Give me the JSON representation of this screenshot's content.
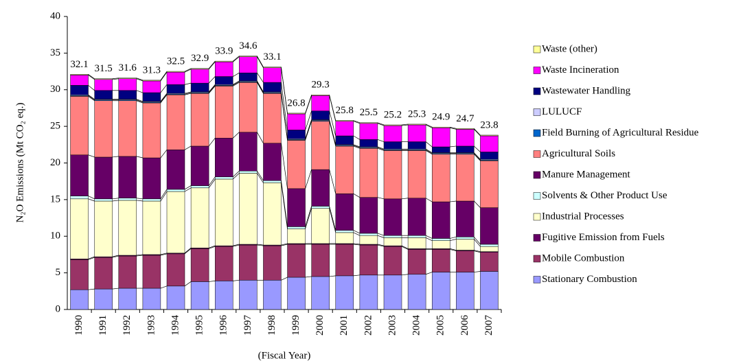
{
  "chart_data": {
    "type": "stacked_bar",
    "y_label": "N₂O Emissions (Mt CO₂ eq.)",
    "x_label": "(Fiscal Year)",
    "categories": [
      "1990",
      "1991",
      "1992",
      "1993",
      "1994",
      "1995",
      "1996",
      "1997",
      "1998",
      "1999",
      "2000",
      "2001",
      "2002",
      "2003",
      "2004",
      "2005",
      "2006",
      "2007"
    ],
    "totals": [
      32.1,
      31.5,
      31.6,
      31.3,
      32.5,
      32.9,
      33.9,
      34.6,
      33.1,
      26.8,
      29.3,
      25.8,
      25.5,
      25.2,
      25.3,
      24.9,
      24.7,
      23.8
    ],
    "ylim": [
      0,
      40
    ],
    "yticks": [
      0,
      5,
      10,
      15,
      20,
      25,
      30,
      35,
      40
    ],
    "series": [
      {
        "name": "Stationary Combustion",
        "color": "#9999ff",
        "values": [
          2.7,
          2.8,
          2.9,
          2.9,
          3.2,
          3.8,
          3.9,
          4.0,
          4.0,
          4.4,
          4.5,
          4.6,
          4.7,
          4.7,
          4.8,
          5.1,
          5.1,
          5.2
        ]
      },
      {
        "name": "Mobile Combustion",
        "color": "#993366",
        "values": [
          4.1,
          4.3,
          4.4,
          4.5,
          4.4,
          4.5,
          4.7,
          4.8,
          4.7,
          4.5,
          4.4,
          4.3,
          4.1,
          3.9,
          3.4,
          3.1,
          2.9,
          2.6
        ]
      },
      {
        "name": "Fugitive Emission from Fuels",
        "color": "#660066",
        "values": [
          0.1,
          0.1,
          0.1,
          0.1,
          0.1,
          0.1,
          0.1,
          0.1,
          0.1,
          0.1,
          0.1,
          0.1,
          0.1,
          0.1,
          0.1,
          0.1,
          0.1,
          0.1
        ]
      },
      {
        "name": "Industrial Processes",
        "color": "#ffffcc",
        "values": [
          8.2,
          7.6,
          7.5,
          7.3,
          8.4,
          8.2,
          9.1,
          9.7,
          8.5,
          2.0,
          4.8,
          1.5,
          1.2,
          1.1,
          1.5,
          1.1,
          1.5,
          0.7
        ]
      },
      {
        "name": "Solvents & Other Product Use",
        "color": "#ccffff",
        "values": [
          0.4,
          0.3,
          0.3,
          0.3,
          0.3,
          0.3,
          0.3,
          0.3,
          0.3,
          0.3,
          0.3,
          0.3,
          0.3,
          0.3,
          0.3,
          0.3,
          0.3,
          0.3
        ]
      },
      {
        "name": "Manure Management",
        "color": "#660066",
        "values": [
          5.6,
          5.7,
          5.7,
          5.6,
          5.4,
          5.4,
          5.3,
          5.3,
          5.1,
          5.2,
          5.0,
          5.0,
          4.9,
          5.0,
          5.1,
          5.0,
          4.9,
          5.0
        ]
      },
      {
        "name": "Agricultural Soils",
        "color": "#ff8080",
        "values": [
          8.0,
          7.7,
          7.6,
          7.5,
          7.5,
          7.2,
          7.1,
          6.8,
          6.8,
          6.6,
          6.6,
          6.5,
          6.7,
          6.6,
          6.5,
          6.5,
          6.4,
          6.4
        ]
      },
      {
        "name": "Field Burning of Agricultural Residue",
        "color": "#0066cc",
        "values": [
          0.1,
          0.1,
          0.1,
          0.1,
          0.1,
          0.1,
          0.1,
          0.1,
          0.1,
          0.1,
          0.1,
          0.1,
          0.1,
          0.1,
          0.1,
          0.1,
          0.1,
          0.1
        ]
      },
      {
        "name": "LULUCF",
        "color": "#ccccff",
        "values": [
          0.1,
          0.1,
          0.1,
          0.1,
          0.1,
          0.1,
          0.1,
          0.1,
          0.1,
          0.1,
          0.1,
          0.1,
          0.1,
          0.1,
          0.1,
          0.1,
          0.1,
          0.1
        ]
      },
      {
        "name": "Wastewater Handling",
        "color": "#000080",
        "values": [
          1.3,
          1.2,
          1.2,
          1.2,
          1.2,
          1.2,
          1.1,
          1.1,
          1.3,
          1.2,
          1.2,
          1.2,
          1.0,
          1.0,
          1.0,
          0.8,
          0.9,
          1.0
        ]
      },
      {
        "name": "Waste Incineration",
        "color": "#ff00ff",
        "values": [
          1.4,
          1.5,
          1.6,
          1.6,
          1.7,
          1.9,
          2.0,
          2.2,
          2.0,
          2.2,
          2.1,
          2.0,
          2.2,
          2.2,
          2.3,
          2.6,
          2.3,
          2.2
        ]
      },
      {
        "name": "Waste (other)",
        "color": "#ffff99",
        "values": [
          0.1,
          0.1,
          0.1,
          0.1,
          0.1,
          0.1,
          0.1,
          0.1,
          0.1,
          0.1,
          0.1,
          0.1,
          0.1,
          0.1,
          0.1,
          0.1,
          0.1,
          0.1
        ]
      }
    ]
  }
}
